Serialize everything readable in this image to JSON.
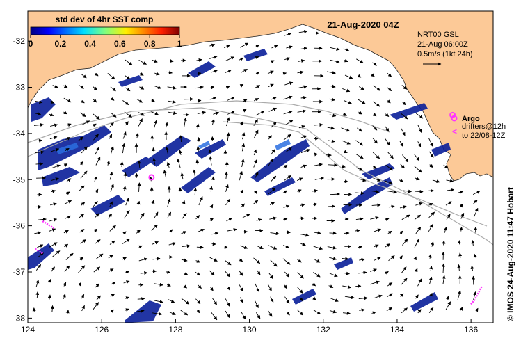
{
  "title": "21-Aug-2020 04Z",
  "colorbar": {
    "title": "std dev of 4hr SST comp",
    "ticks": [
      "0",
      "0.2",
      "0.4",
      "0.6",
      "0.8",
      "1"
    ],
    "range": [
      0,
      1
    ]
  },
  "current_info": {
    "line1": "NRT00 GSL",
    "line2": "21-Aug 06:00Z",
    "line3": "0.5m/s (1kt 24h)",
    "scale_arrow_speed_ms": 0.5
  },
  "legend": {
    "argo_label": "Argo",
    "drifters_label": "drifters@12h",
    "drifters_to": "to 22/08-12Z",
    "argo_color": "#ff33ff",
    "drifter_color": "#ff33ff"
  },
  "credit": "© IMOS 24-Aug-2020 11:47 Hobart",
  "axes": {
    "lon_range": [
      124,
      136.6
    ],
    "lat_range": [
      -38.1,
      -31.35
    ],
    "x_ticks": [
      "124",
      "126",
      "128",
      "130",
      "132",
      "134",
      "136"
    ],
    "y_ticks": [
      "-32",
      "-33",
      "-34",
      "-35",
      "-36",
      "-37",
      "-38"
    ]
  },
  "colors": {
    "land": "#fcc997",
    "ocean": "#ffffff",
    "track": "#aaaaaa",
    "sst_dark": "#0a1f9a",
    "sst_mid": "#1f5fd6"
  },
  "argo_floats": [
    {
      "lon": 127.35,
      "lat": -34.95
    },
    {
      "lon": 135.5,
      "lat": -33.6
    }
  ],
  "drifters": [
    {
      "track": [
        [
          124.4,
          -35.9
        ],
        [
          124.5,
          -35.95
        ],
        [
          124.6,
          -36.0
        ],
        [
          124.7,
          -36.05
        ]
      ]
    },
    {
      "track": [
        [
          124.2,
          -36.5
        ],
        [
          124.3,
          -36.55
        ],
        [
          124.4,
          -36.6
        ]
      ]
    },
    {
      "track": [
        [
          136.0,
          -37.7
        ],
        [
          136.1,
          -37.6
        ],
        [
          136.2,
          -37.45
        ],
        [
          136.3,
          -37.3
        ]
      ]
    }
  ]
}
